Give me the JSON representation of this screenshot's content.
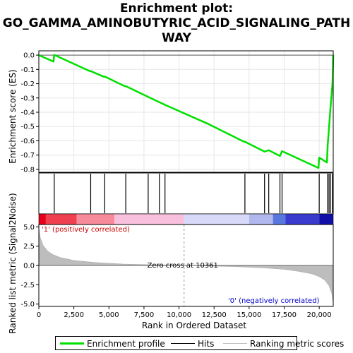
{
  "chart_data": {
    "type": "line",
    "title": "Enrichment plot: GO_GAMMA_AMINOBUTYRIC_ACID_SIGNALING_PATHWAY",
    "title_lines": [
      "Enrichment plot:",
      "GO_GAMMA_AMINOBUTYRIC_ACID_SIGNALING_PATH",
      "WAY"
    ],
    "n_genes": 21000,
    "es_panel": {
      "ylabel": "Enrichment score (ES)",
      "ylim": [
        -0.82,
        0.03
      ],
      "yticks": [
        "0.0",
        "-0.1",
        "-0.2",
        "-0.3",
        "-0.4",
        "-0.5",
        "-0.6",
        "-0.7",
        "-0.8"
      ],
      "ytick_values": [
        0.0,
        -0.1,
        -0.2,
        -0.3,
        -0.4,
        -0.5,
        -0.6,
        -0.7,
        -0.8
      ],
      "color": "#00e000",
      "points": [
        [
          0,
          0.0
        ],
        [
          1050,
          -0.045
        ],
        [
          1100,
          0.002
        ],
        [
          3650,
          -0.113
        ],
        [
          3700,
          -0.112
        ],
        [
          4650,
          -0.152
        ],
        [
          4700,
          -0.15
        ],
        [
          6150,
          -0.218
        ],
        [
          6200,
          -0.217
        ],
        [
          7800,
          -0.292
        ],
        [
          8600,
          -0.33
        ],
        [
          9000,
          -0.348
        ],
        [
          12000,
          -0.478
        ],
        [
          14650,
          -0.607
        ],
        [
          14700,
          -0.606
        ],
        [
          16100,
          -0.675
        ],
        [
          16400,
          -0.666
        ],
        [
          17200,
          -0.706
        ],
        [
          17350,
          -0.672
        ],
        [
          19950,
          -0.79
        ],
        [
          20000,
          -0.717
        ],
        [
          20550,
          -0.752
        ],
        [
          20600,
          -0.635
        ],
        [
          20700,
          -0.51
        ],
        [
          20800,
          -0.375
        ],
        [
          20950,
          -0.196
        ],
        [
          21000,
          0.002
        ]
      ]
    },
    "hits": [
      1100,
      3700,
      4700,
      6200,
      7800,
      8600,
      9000,
      14700,
      16100,
      16400,
      17200,
      17350,
      20000,
      20600,
      20700,
      20800,
      20950,
      21000
    ],
    "rank_panel": {
      "ylabel": "Ranked list metric (Signal2Noise)",
      "ylim": [
        -5.3,
        5.3
      ],
      "yticks": [
        "5.0",
        "2.5",
        "0.0",
        "-2.5",
        "-5.0"
      ],
      "ytick_values": [
        5.0,
        2.5,
        0.0,
        -2.5,
        -5.0
      ],
      "zero_cross": 10361,
      "zero_cross_label": "Zero cross at 10361",
      "pos_label": "'1' (positively correlated)",
      "neg_label": "'0' (negatively correlated)",
      "metric_curve": [
        [
          0,
          4.9
        ],
        [
          100,
          3.6
        ],
        [
          300,
          2.6
        ],
        [
          600,
          1.9
        ],
        [
          1000,
          1.4
        ],
        [
          1500,
          1.05
        ],
        [
          2500,
          0.65
        ],
        [
          4000,
          0.38
        ],
        [
          6000,
          0.18
        ],
        [
          8000,
          0.08
        ],
        [
          10361,
          0.0
        ],
        [
          12000,
          -0.06
        ],
        [
          14000,
          -0.15
        ],
        [
          16000,
          -0.3
        ],
        [
          17500,
          -0.5
        ],
        [
          18500,
          -0.75
        ],
        [
          19500,
          -1.1
        ],
        [
          20000,
          -1.45
        ],
        [
          20400,
          -1.9
        ],
        [
          20700,
          -2.6
        ],
        [
          20900,
          -3.6
        ],
        [
          21000,
          -5.0
        ]
      ]
    },
    "x_axis": {
      "xlabel": "Rank in Ordered Dataset",
      "xlim": [
        0,
        21000
      ],
      "xticks": [
        "0",
        "2,500",
        "5,000",
        "7,500",
        "10,000",
        "12,500",
        "15,000",
        "17,500",
        "20,000"
      ],
      "xtick_values": [
        0,
        2500,
        5000,
        7500,
        10000,
        12500,
        15000,
        17500,
        20000
      ]
    },
    "heat_bar": [
      {
        "from": 0,
        "to": 500,
        "color": "#e8001a"
      },
      {
        "from": 500,
        "to": 2700,
        "color": "#f04050"
      },
      {
        "from": 2700,
        "to": 5400,
        "color": "#f88a9a"
      },
      {
        "from": 5400,
        "to": 10361,
        "color": "#f8c0dc"
      },
      {
        "from": 10361,
        "to": 15000,
        "color": "#d8d8f8"
      },
      {
        "from": 15000,
        "to": 16700,
        "color": "#b0b8ee"
      },
      {
        "from": 16700,
        "to": 17600,
        "color": "#5878e0"
      },
      {
        "from": 17600,
        "to": 20000,
        "color": "#3a3acf"
      },
      {
        "from": 20000,
        "to": 21000,
        "color": "#1010a8"
      }
    ],
    "legend": [
      {
        "label": "Enrichment profile",
        "color": "#00e000"
      },
      {
        "label": "Hits",
        "color": "#000000"
      },
      {
        "label": "Ranking metric scores",
        "color": "#c0c0c0"
      }
    ]
  }
}
